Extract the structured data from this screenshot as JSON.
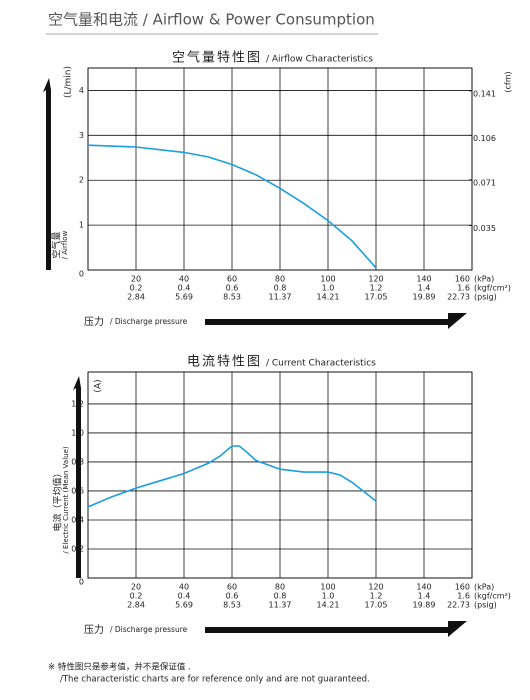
{
  "header": {
    "title": "空气量和电流 / Airflow & Power Consumption"
  },
  "chart_data": [
    {
      "type": "line",
      "title": "空气量特性图",
      "subtitle": "/ Airflow Characteristics",
      "y_unit": "(L/min)",
      "ylabel": [
        "空气量",
        "/ Airflow"
      ],
      "y2_unit": "(cfm)",
      "xlabel": "压力",
      "xlabel_en": "/ Discharge pressure",
      "x_units": [
        "(kPa)",
        "(kgf/cm²)",
        "(psig)"
      ],
      "xlim": [
        0,
        160
      ],
      "xticks": [
        20,
        40,
        60,
        80,
        100,
        120,
        140,
        160
      ],
      "xtick_labels_kgf": [
        "0.2",
        "0.4",
        "0.6",
        "0.8",
        "1.0",
        "1.2",
        "1.4",
        "1.6"
      ],
      "xtick_labels_psig": [
        "2.84",
        "5.69",
        "8.53",
        "11.37",
        "14.21",
        "17.05",
        "19.89",
        "22.73"
      ],
      "ylim": [
        0,
        4.5
      ],
      "yticks": [
        0,
        1,
        2,
        3,
        4
      ],
      "y2lim": [
        0,
        0.159
      ],
      "y2ticks": [
        0.035,
        0.071,
        0.106,
        0.141
      ],
      "grid": true,
      "color": "#1a9ee0",
      "x": [
        0,
        20,
        40,
        50,
        60,
        70,
        80,
        90,
        100,
        110,
        120
      ],
      "values": [
        2.78,
        2.74,
        2.62,
        2.52,
        2.35,
        2.12,
        1.82,
        1.48,
        1.1,
        0.65,
        0.05
      ]
    },
    {
      "type": "line",
      "title": "电流特性图",
      "subtitle": "/ Current Characteristics",
      "y_unit": "(A)",
      "ylabel": [
        "电流（平均值）",
        "/ Electric Current (Mean Value)"
      ],
      "xlabel": "压力",
      "xlabel_en": "/ Discharge pressure",
      "x_units": [
        "(kPa)",
        "(kgf/cm²)",
        "(psig)"
      ],
      "xlim": [
        0,
        160
      ],
      "xticks": [
        20,
        40,
        60,
        80,
        100,
        120,
        140,
        160
      ],
      "xtick_labels_kgf": [
        "0.2",
        "0.4",
        "0.6",
        "0.8",
        "1.0",
        "1.2",
        "1.4",
        "1.6"
      ],
      "xtick_labels_psig": [
        "2.84",
        "5.69",
        "8.53",
        "11.37",
        "14.21",
        "17.05",
        "19.89",
        "22.73"
      ],
      "ylim": [
        0,
        1.42
      ],
      "yticks": [
        0,
        0.2,
        0.4,
        0.6,
        0.8,
        {
          "value": 1,
          "label": "1.0"
        },
        1.2
      ],
      "grid": true,
      "color": "#1a9ee0",
      "x": [
        0,
        10,
        20,
        30,
        40,
        50,
        55,
        60,
        63,
        66,
        70,
        80,
        90,
        100,
        105,
        110,
        120
      ],
      "values": [
        0.49,
        0.56,
        0.62,
        0.67,
        0.72,
        0.79,
        0.84,
        0.91,
        0.91,
        0.87,
        0.81,
        0.75,
        0.73,
        0.73,
        0.71,
        0.66,
        0.53
      ]
    }
  ],
  "footnote": [
    "※ 特性图只是参考值，并不是保证值 .",
    "/The characteristic charts are for reference only and are not guaranteed."
  ]
}
